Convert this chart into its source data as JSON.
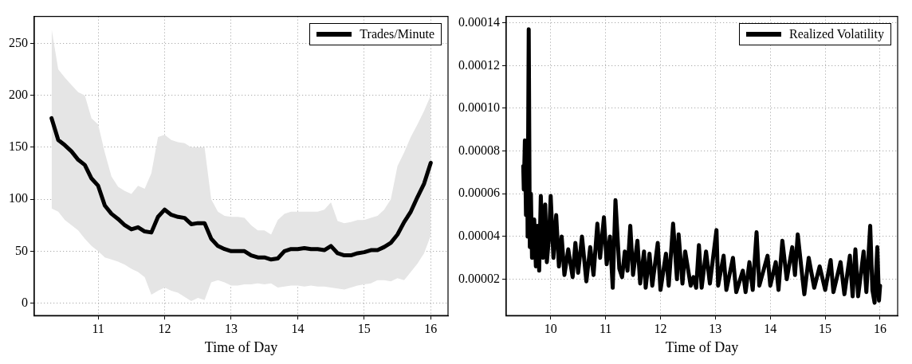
{
  "chart_data": [
    {
      "type": "line",
      "xlabel": "Time of Day",
      "xlim": [
        10.04,
        16.26
      ],
      "xticks": [
        11,
        12,
        13,
        14,
        15,
        16
      ],
      "ylim": [
        -12,
        276
      ],
      "yticks": [
        0,
        50,
        100,
        150,
        200,
        250
      ],
      "grid": true,
      "legend": "top right",
      "x": [
        10.3,
        10.4,
        10.5,
        10.6,
        10.7,
        10.8,
        10.9,
        11.0,
        11.1,
        11.2,
        11.3,
        11.4,
        11.5,
        11.6,
        11.7,
        11.8,
        11.9,
        12.0,
        12.1,
        12.2,
        12.3,
        12.4,
        12.5,
        12.6,
        12.7,
        12.8,
        12.9,
        13.0,
        13.1,
        13.2,
        13.3,
        13.4,
        13.5,
        13.6,
        13.7,
        13.8,
        13.9,
        14.0,
        14.1,
        14.2,
        14.3,
        14.4,
        14.5,
        14.6,
        14.7,
        14.8,
        14.9,
        15.0,
        15.1,
        15.2,
        15.3,
        15.4,
        15.5,
        15.6,
        15.7,
        15.8,
        15.9,
        16.0
      ],
      "series": [
        {
          "name": "Trades/Minute",
          "color": "#000000",
          "values": [
            178,
            157,
            152,
            146,
            138,
            133,
            120,
            113,
            94,
            86,
            81,
            75,
            71,
            73,
            69,
            68,
            83,
            90,
            85,
            83,
            82,
            76,
            77,
            77,
            62,
            55,
            52,
            50,
            50,
            50,
            46,
            44,
            44,
            42,
            43,
            50,
            52,
            52,
            53,
            52,
            52,
            51,
            55,
            48,
            46,
            46,
            48,
            49,
            51,
            51,
            54,
            58,
            66,
            78,
            88,
            102,
            115,
            135
          ],
          "upper": [
            264,
            225,
            217,
            210,
            203,
            200,
            178,
            172,
            145,
            122,
            112,
            108,
            105,
            113,
            110,
            125,
            160,
            162,
            157,
            155,
            154,
            150,
            150,
            150,
            100,
            88,
            84,
            83,
            83,
            82,
            75,
            70,
            70,
            66,
            80,
            86,
            88,
            88,
            88,
            88,
            88,
            90,
            97,
            79,
            77,
            78,
            80,
            80,
            82,
            84,
            90,
            100,
            132,
            145,
            160,
            172,
            185,
            200
          ],
          "lower": [
            91,
            88,
            80,
            75,
            70,
            62,
            55,
            50,
            44,
            42,
            40,
            37,
            33,
            30,
            25,
            8,
            12,
            15,
            12,
            10,
            6,
            2,
            5,
            3,
            20,
            22,
            20,
            17,
            17,
            18,
            18,
            19,
            18,
            19,
            15,
            16,
            17,
            17,
            16,
            17,
            16,
            16,
            15,
            14,
            13,
            15,
            17,
            18,
            19,
            22,
            22,
            21,
            24,
            22,
            30,
            38,
            48,
            65
          ]
        }
      ]
    },
    {
      "type": "line",
      "xlabel": "Time of Day",
      "xlim": [
        9.19,
        16.32
      ],
      "xticks": [
        10,
        11,
        12,
        13,
        14,
        15,
        16
      ],
      "ylim": [
        3e-06,
        0.000143
      ],
      "yticks": [
        {
          "value": 2e-05,
          "label": "0.00002"
        },
        {
          "value": 4e-05,
          "label": "0.00004"
        },
        {
          "value": 6e-05,
          "label": "0.00006"
        },
        {
          "value": 8e-05,
          "label": "0.00008"
        },
        {
          "value": 0.0001,
          "label": "0.00010"
        },
        {
          "value": 0.00012,
          "label": "0.00012"
        },
        {
          "value": 0.00014,
          "label": "0.00014"
        }
      ],
      "grid": true,
      "legend": "top right",
      "x": [
        9.5,
        9.51,
        9.53,
        9.55,
        9.57,
        9.58,
        9.6,
        9.62,
        9.64,
        9.66,
        9.7,
        9.73,
        9.76,
        9.79,
        9.82,
        9.86,
        9.9,
        9.93,
        9.97,
        10.0,
        10.05,
        10.1,
        10.15,
        10.2,
        10.25,
        10.32,
        10.4,
        10.45,
        10.5,
        10.57,
        10.65,
        10.72,
        10.78,
        10.85,
        10.9,
        10.97,
        11.02,
        11.08,
        11.13,
        11.18,
        11.25,
        11.3,
        11.35,
        11.4,
        11.45,
        11.5,
        11.58,
        11.63,
        11.7,
        11.73,
        11.8,
        11.85,
        11.95,
        12.0,
        12.1,
        12.15,
        12.23,
        12.3,
        12.33,
        12.4,
        12.45,
        12.55,
        12.6,
        12.65,
        12.7,
        12.75,
        12.83,
        12.9,
        13.02,
        13.05,
        13.15,
        13.2,
        13.32,
        13.38,
        13.5,
        13.55,
        13.62,
        13.68,
        13.75,
        13.8,
        13.95,
        14.0,
        14.1,
        14.15,
        14.22,
        14.3,
        14.4,
        14.45,
        14.5,
        14.58,
        14.62,
        14.7,
        14.8,
        14.9,
        15.0,
        15.05,
        15.1,
        15.15,
        15.28,
        15.35,
        15.45,
        15.5,
        15.55,
        15.6,
        15.7,
        15.75,
        15.82,
        15.86,
        15.9,
        15.95,
        15.98,
        16.0
      ],
      "series": [
        {
          "name": "Realized Volatility",
          "color": "#000000",
          "values": [
            7.3e-05,
            6.2e-05,
            8.5e-05,
            5e-05,
            8e-05,
            4e-05,
            0.000137,
            3.5e-05,
            6e-05,
            3e-05,
            4.8e-05,
            2.6e-05,
            4.5e-05,
            2.4e-05,
            5.9e-05,
            3e-05,
            5.5e-05,
            2.8e-05,
            4e-05,
            5.9e-05,
            3e-05,
            5e-05,
            2.6e-05,
            4e-05,
            2.2e-05,
            3.4e-05,
            2.1e-05,
            3.7e-05,
            2.3e-05,
            4e-05,
            1.9e-05,
            3.5e-05,
            2.2e-05,
            4.6e-05,
            3e-05,
            4.9e-05,
            2.7e-05,
            4e-05,
            1.6e-05,
            5.7e-05,
            2.5e-05,
            2.1e-05,
            3.3e-05,
            2.4e-05,
            4.5e-05,
            2.2e-05,
            3.8e-05,
            1.8e-05,
            3.3e-05,
            1.6e-05,
            3.2e-05,
            1.7e-05,
            3.7e-05,
            1.5e-05,
            3.2e-05,
            1.7e-05,
            4.6e-05,
            2e-05,
            4.1e-05,
            1.8e-05,
            3.3e-05,
            1.7e-05,
            2.1e-05,
            1.6e-05,
            3.6e-05,
            1.6e-05,
            3.3e-05,
            1.8e-05,
            4.3e-05,
            1.7e-05,
            3.1e-05,
            1.5e-05,
            3e-05,
            1.4e-05,
            2.4e-05,
            1.4e-05,
            2.8e-05,
            1.5e-05,
            4.2e-05,
            1.7e-05,
            3.1e-05,
            1.7e-05,
            2.8e-05,
            1.5e-05,
            3.8e-05,
            2e-05,
            3.5e-05,
            2.2e-05,
            4.1e-05,
            2.2e-05,
            1.3e-05,
            3e-05,
            1.6e-05,
            2.6e-05,
            1.5e-05,
            2.2e-05,
            2.9e-05,
            1.4e-05,
            2.8e-05,
            1.3e-05,
            3.1e-05,
            1.2e-05,
            3.4e-05,
            1.2e-05,
            3.3e-05,
            1.4e-05,
            4.5e-05,
            1.5e-05,
            9e-06,
            3.5e-05,
            1e-05,
            1.7e-05
          ]
        }
      ]
    }
  ]
}
